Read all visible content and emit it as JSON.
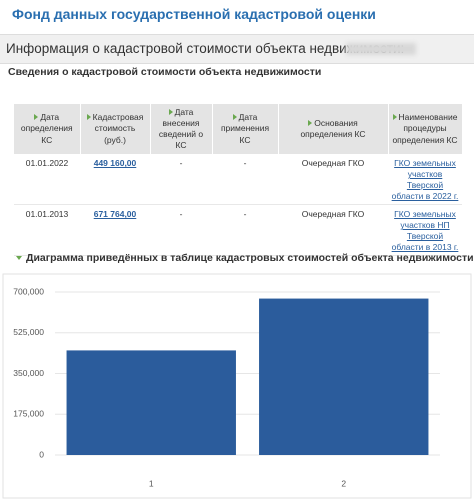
{
  "header": {
    "title": "Фонд данных государственной кадастровой оценки"
  },
  "info_bar": {
    "label": "Информация о кадастровой стоимости объекта недвижимости:"
  },
  "section_title": "Сведения о кадастровой стоимости объекта недвижимости",
  "table": {
    "columns": [
      "Дата определения КС",
      "Кадастровая стоимость (руб.)",
      "Дата внесения сведений о КС",
      "Дата применения КС",
      "Основания определения КС",
      "Наименование процедуры определения КС"
    ],
    "rows": [
      [
        "01.01.2022",
        "449 160,00",
        "-",
        "-",
        "Очередная ГКО",
        "ГКО земельных участков Тверской области в 2022 г."
      ],
      [
        "01.01.2013",
        "671 764,00",
        "-",
        "-",
        "Очередная ГКО",
        "ГКО земельных участков НП Тверской области в 2013 г."
      ]
    ]
  },
  "chart_data": {
    "type": "bar",
    "title": "Диаграмма приведённых в таблице кадастровых стоимостей объекта недвижимости",
    "categories": [
      "1",
      "2"
    ],
    "values": [
      449160,
      671764
    ],
    "color": "#2b5c9c",
    "ylim": [
      0,
      700000
    ],
    "yticks": [
      0,
      {
        "value": 175000,
        "label": "175,000"
      },
      {
        "value": 350000,
        "label": "350,000"
      },
      {
        "value": 525000,
        "label": "525,000"
      },
      {
        "value": 700000,
        "label": "700,000"
      }
    ],
    "grid": true
  }
}
